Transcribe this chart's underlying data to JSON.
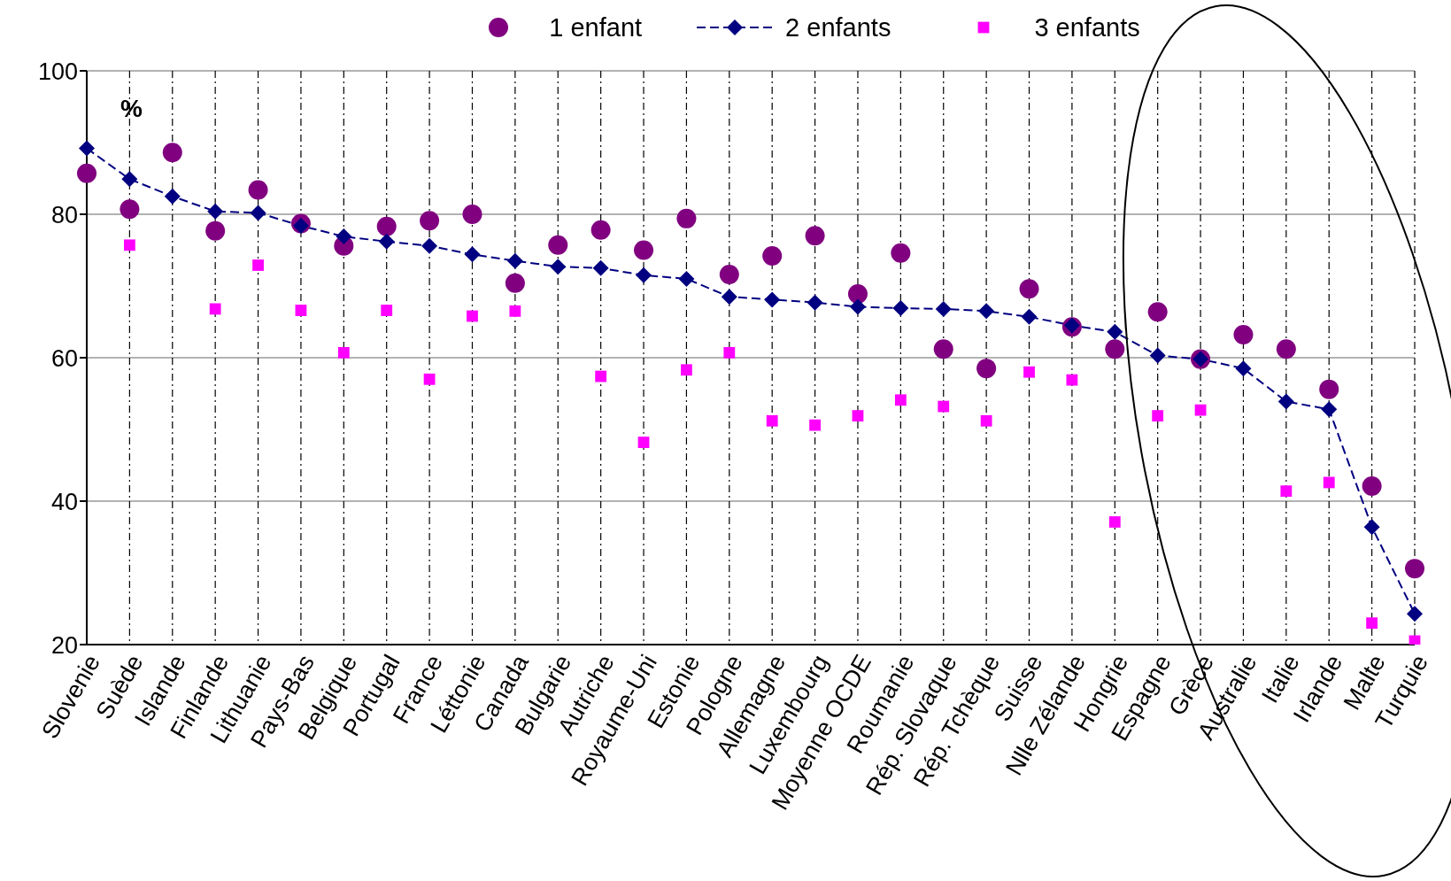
{
  "chart_data": {
    "type": "line",
    "categories": [
      "Slovenie",
      "Suède",
      "Islande",
      "Finlande",
      "Lithuanie",
      "Pays-Bas",
      "Belgique",
      "Portugal",
      "France",
      "Léttonie",
      "Canada",
      "Bulgarie",
      "Autriche",
      "Royaume-Uni",
      "Estonie",
      "Pologne",
      "Allemagne",
      "Luxembourg",
      "Moyenne OCDE",
      "Roumanie",
      "Rép. Slovaque",
      "Rép. Tchèque",
      "Suisse",
      "Nlle Zélande",
      "Hongrie",
      "Espagne",
      "Grèce",
      "Australie",
      "Italie",
      "Irlande",
      "Malte",
      "Turquie"
    ],
    "series": [
      {
        "name": "1 enfant",
        "type": "scatter",
        "marker": "circle",
        "color": "#800080",
        "values": [
          85.7,
          80.7,
          88.6,
          77.7,
          83.4,
          78.7,
          75.6,
          78.3,
          79.1,
          80.0,
          70.4,
          75.7,
          77.8,
          75.0,
          79.4,
          71.6,
          74.2,
          77.0,
          68.9,
          74.6,
          61.2,
          58.5,
          69.6,
          64.3,
          61.2,
          66.4,
          59.8,
          63.2,
          61.2,
          55.6,
          42.1,
          30.6
        ]
      },
      {
        "name": "2 enfants",
        "marker": "diamond",
        "line_style": "dashed",
        "color": "#000080",
        "values": [
          89.2,
          84.9,
          82.5,
          80.4,
          80.2,
          78.4,
          76.9,
          76.2,
          75.6,
          74.4,
          73.5,
          72.7,
          72.5,
          71.5,
          71.0,
          68.5,
          68.1,
          67.7,
          67.1,
          66.9,
          66.8,
          66.5,
          65.7,
          64.5,
          63.6,
          60.3,
          59.8,
          58.5,
          53.9,
          52.8,
          36.4,
          24.3
        ]
      },
      {
        "name": "3 enfants",
        "type": "scatter",
        "marker": "square",
        "color": "#ff00ff",
        "values": [
          null,
          75.7,
          null,
          66.8,
          72.9,
          66.6,
          60.7,
          66.6,
          57.0,
          65.8,
          66.5,
          null,
          57.4,
          48.2,
          58.3,
          60.7,
          51.2,
          50.6,
          51.9,
          54.1,
          53.2,
          51.2,
          58.0,
          56.9,
          37.1,
          51.9,
          52.7,
          null,
          41.4,
          42.6,
          23.0,
          20.5
        ]
      }
    ],
    "ylim": [
      20,
      100
    ],
    "yticks": [
      20,
      40,
      60,
      80,
      100
    ],
    "grid": true,
    "legend": "top",
    "annotations": [
      "%"
    ]
  }
}
